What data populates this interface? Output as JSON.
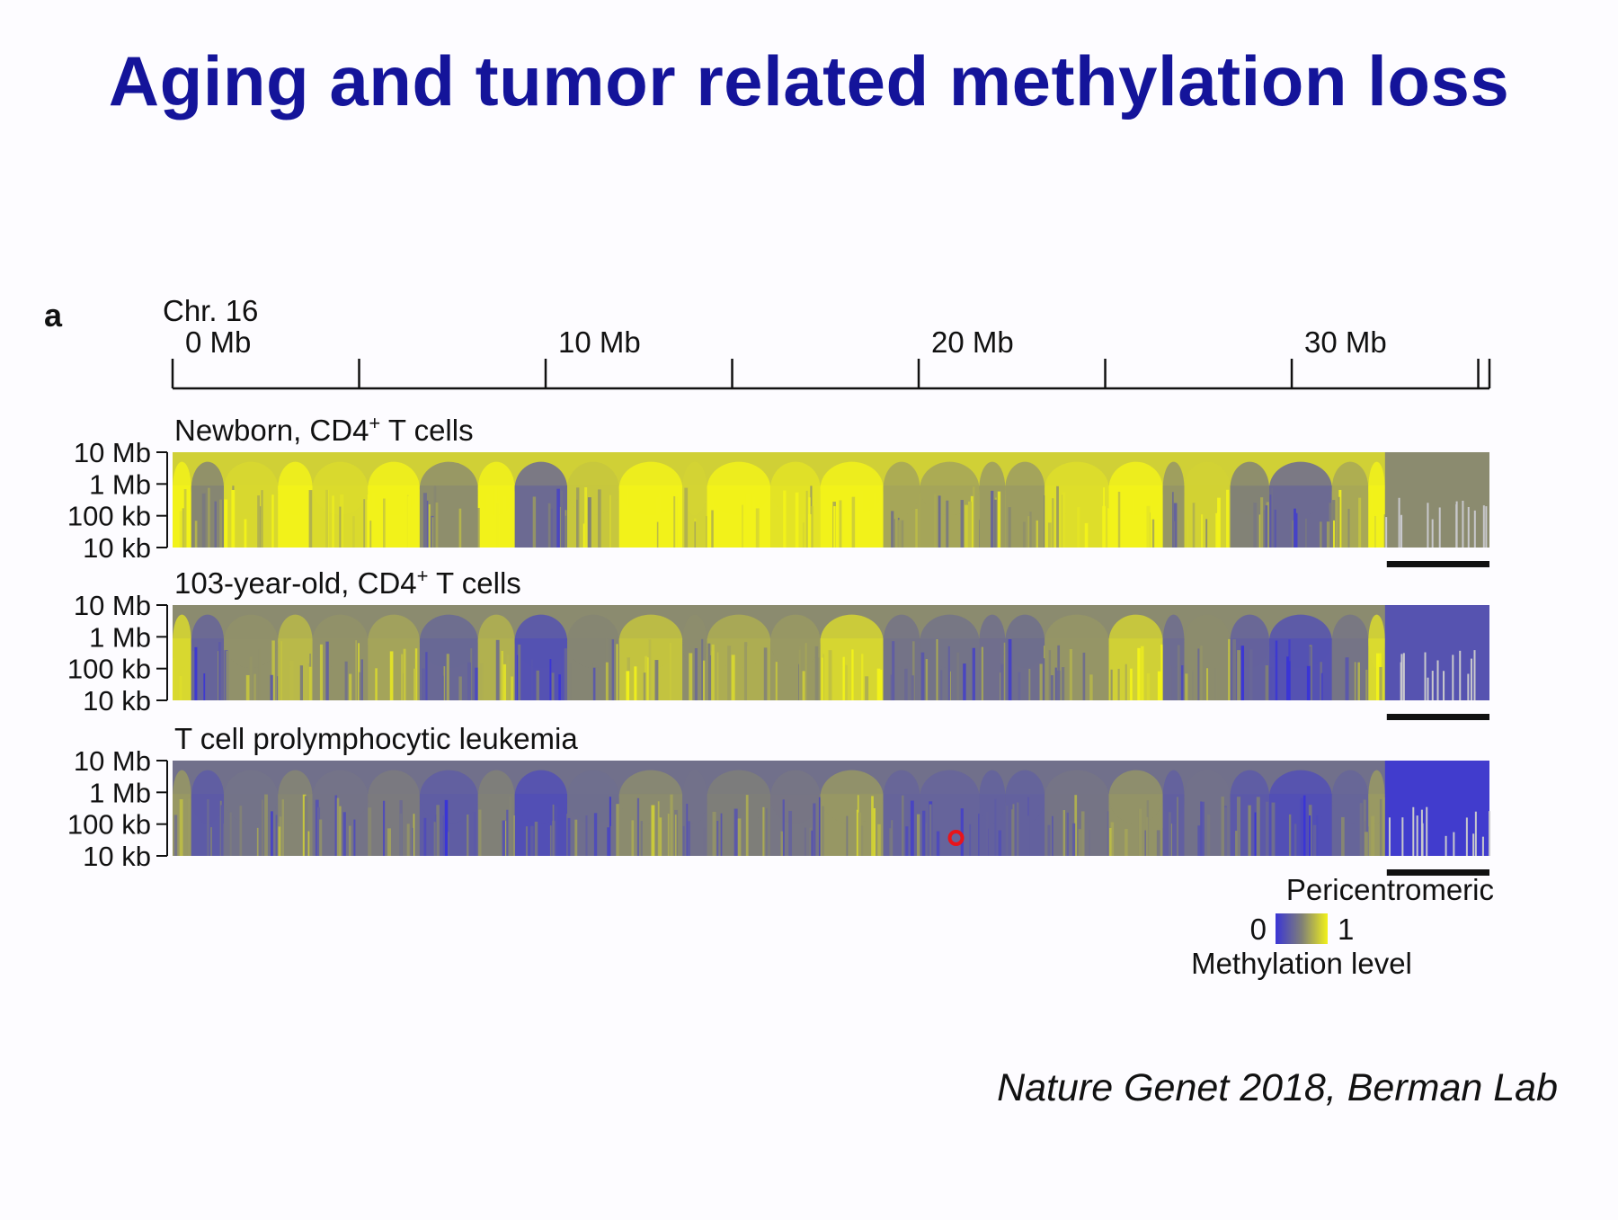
{
  "slide": {
    "title": "Aging and tumor related methylation loss",
    "credit": "Nature Genet 2018, Berman Lab",
    "panel_letter": "a"
  },
  "colors": {
    "title": "#14149a",
    "low_methylation": "#3a35d6",
    "mid_methylation": "#7f7f78",
    "high_methylation": "#f2f21a",
    "marker": "#e8141b"
  },
  "chart_data": {
    "type": "heatmap",
    "title": "Chr. 16",
    "x_axis": {
      "unit": "Mb",
      "range": [
        0,
        35.3
      ],
      "major_ticks": [
        0,
        10,
        20,
        30
      ],
      "tick_labels": [
        "0 Mb",
        "10 Mb",
        "20 Mb",
        "30 Mb"
      ],
      "minor_ticks": [
        5,
        15,
        25,
        35
      ]
    },
    "y_axis": {
      "scale": "log",
      "tick_labels": [
        "10 Mb",
        "1 Mb",
        "100 kb",
        "10 kb"
      ]
    },
    "tracks": [
      {
        "name": "Newborn, CD4⁺ T cells",
        "label_prefix": "Newborn, CD4",
        "label_sup": "+",
        "label_suffix": " T cells",
        "mean_methylation": 0.85,
        "pericentromeric_methylation": 0.55
      },
      {
        "name": "103-year-old, CD4⁺ T cells",
        "label_prefix": "103-year-old, CD4",
        "label_sup": "+",
        "label_suffix": " T cells",
        "mean_methylation": 0.55,
        "pericentromeric_methylation": 0.2
      },
      {
        "name": "T cell prolymphocytic leukemia",
        "label_prefix": "T cell prolymphocytic leukemia",
        "label_sup": "",
        "label_suffix": "",
        "mean_methylation": 0.4,
        "pericentromeric_methylation": 0.05
      }
    ],
    "pericentromeric_region_mb": [
      32.5,
      35.3
    ],
    "annotation_marker_mb": 21.0,
    "legend": {
      "region_label": "Pericentromeric",
      "min_label": "0",
      "max_label": "1",
      "title": "Methylation level"
    }
  }
}
